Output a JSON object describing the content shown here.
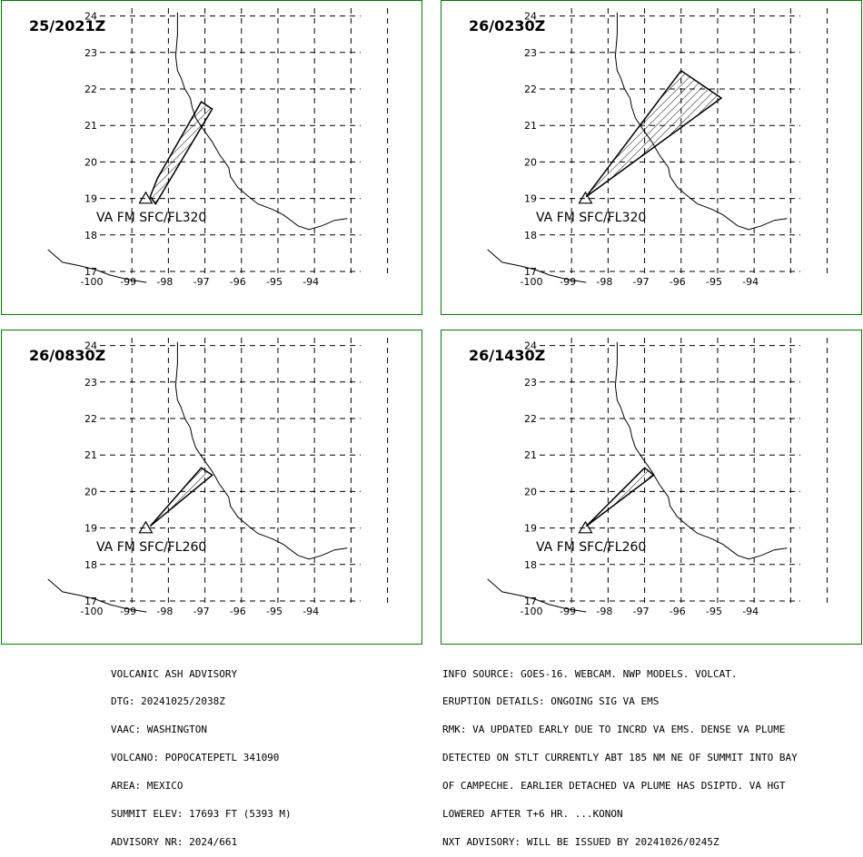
{
  "panels": [
    {
      "timestamp": "25/2021Z",
      "plume_label": "VA FM SFC/FL320",
      "polygon": [
        [
          -98.5,
          19.05
        ],
        [
          -98.3,
          19.55
        ],
        [
          -97.1,
          21.65
        ],
        [
          -96.8,
          21.45
        ],
        [
          -98.35,
          18.85
        ]
      ]
    },
    {
      "timestamp": "26/0230Z",
      "plume_label": "VA FM SFC/FL320",
      "polygon": [
        [
          -98.6,
          19.05
        ],
        [
          -96.0,
          22.5
        ],
        [
          -94.9,
          21.75
        ]
      ]
    },
    {
      "timestamp": "26/0830Z",
      "plume_label": "VA FM SFC/FL260",
      "polygon": [
        [
          -98.5,
          19.05
        ],
        [
          -97.1,
          20.65
        ],
        [
          -96.8,
          20.45
        ]
      ]
    },
    {
      "timestamp": "26/1430Z",
      "plume_label": "VA FM SFC/FL260",
      "polygon": [
        [
          -98.6,
          19.05
        ],
        [
          -97.0,
          20.65
        ],
        [
          -96.75,
          20.45
        ]
      ]
    }
  ],
  "map_axes": {
    "lon_labels": [
      "-100",
      "-99",
      "-98",
      "-97",
      "-96",
      "-95",
      "-94"
    ],
    "lat_labels": [
      "17",
      "18",
      "19",
      "20",
      "21",
      "22",
      "23",
      "24"
    ],
    "lon_range": [
      -100,
      -93
    ],
    "lat_range": [
      17,
      24
    ]
  },
  "volcano": {
    "lon": -98.62,
    "lat": 19.02
  },
  "advisory_left": [
    "VOLCANIC ASH ADVISORY",
    "DTG: 20241025/2038Z",
    "VAAC: WASHINGTON",
    "VOLCANO: POPOCATEPETL 341090",
    "AREA: MEXICO",
    "SUMMIT ELEV: 17693 FT (5393 M)",
    "ADVISORY NR: 2024/661"
  ],
  "advisory_right": [
    "INFO SOURCE: GOES-16. WEBCAM. NWP MODELS. VOLCAT.",
    "ERUPTION DETAILS: ONGOING SIG VA EMS",
    "RMK: VA UPDATED EARLY DUE TO INCRD VA EMS. DENSE VA PLUME",
    "DETECTED ON STLT CURRENTLY ABT 185 NM NE OF SUMMIT INTO BAY",
    "OF CAMPECHE. EARLIER DETACHED VA PLUME HAS DSIPTD. VA HGT",
    "LOWERED AFTER T+6 HR. ...KONON",
    "NXT ADVISORY: WILL BE ISSUED BY 20241026/0245Z"
  ],
  "colors": {
    "frame": "#008000",
    "ink": "#000000",
    "background": "#ffffff"
  }
}
